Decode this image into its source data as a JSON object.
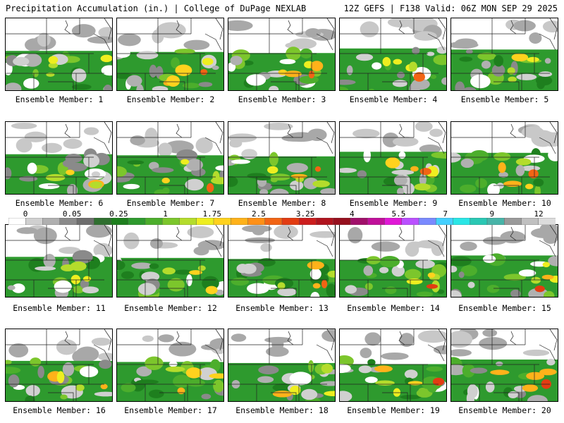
{
  "header": {
    "left": "Precipitation Accumulation (in.) | College of DuPage NEXLAB",
    "right": "12Z GEFS | F138 Valid: 06Z MON SEP 29 2025"
  },
  "colorbar": {
    "tick_labels": [
      "0",
      "0.05",
      "0.25",
      "1",
      "1.75",
      "2.5",
      "3.25",
      "4",
      "5.5",
      "7",
      "9",
      "12"
    ],
    "colors": [
      "#ffffff",
      "#d0d0d0",
      "#b0b0b0",
      "#8a8a8a",
      "#6e6e6e",
      "#2f6f2f",
      "#1e7f1e",
      "#2e9a2e",
      "#4cae2c",
      "#7cc62c",
      "#b4dc2c",
      "#eeee20",
      "#ffd21e",
      "#ffb21a",
      "#ff9016",
      "#f26414",
      "#e23c12",
      "#cc1e1e",
      "#b0141e",
      "#96101e",
      "#a0106a",
      "#c0109a",
      "#e018d6",
      "#ba50ff",
      "#7a8aff",
      "#44d0ff",
      "#2ae6e6",
      "#2ac8b4",
      "#48b4a8",
      "#9a9a9a",
      "#c0c0c0",
      "#dcdcdc"
    ]
  },
  "panels": [
    {
      "label": "Ensemble Member: 1"
    },
    {
      "label": "Ensemble Member: 2"
    },
    {
      "label": "Ensemble Member: 3"
    },
    {
      "label": "Ensemble Member: 4"
    },
    {
      "label": "Ensemble Member: 5"
    },
    {
      "label": "Ensemble Member: 6"
    },
    {
      "label": "Ensemble Member: 7"
    },
    {
      "label": "Ensemble Member: 8"
    },
    {
      "label": "Ensemble Member: 9"
    },
    {
      "label": "Ensemble Member: 10"
    },
    {
      "label": "Ensemble Member: 11"
    },
    {
      "label": "Ensemble Member: 12"
    },
    {
      "label": "Ensemble Member: 13"
    },
    {
      "label": "Ensemble Member: 14"
    },
    {
      "label": "Ensemble Member: 15"
    },
    {
      "label": "Ensemble Member: 16"
    },
    {
      "label": "Ensemble Member: 17"
    },
    {
      "label": "Ensemble Member: 18"
    },
    {
      "label": "Ensemble Member: 19"
    },
    {
      "label": "Ensemble Member: 20"
    }
  ]
}
